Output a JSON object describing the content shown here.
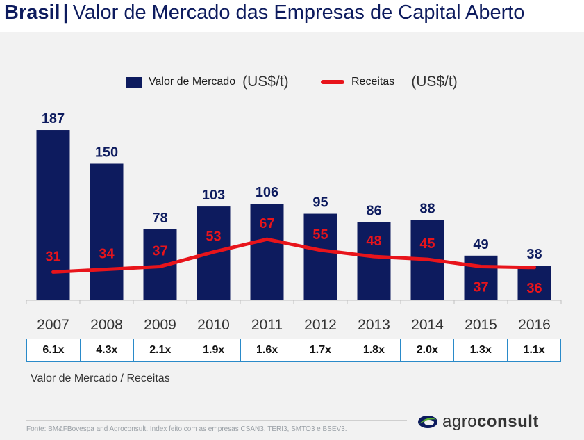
{
  "header": {
    "brand": "Brasil",
    "separator": "|",
    "subtitle": "Valor de Mercado das Empresas de Capital Aberto"
  },
  "legend": {
    "bar_label": "Valor de Mercado",
    "bar_unit": "(US$/t)",
    "line_label": "Receitas",
    "line_unit": "(US$/t)"
  },
  "colors": {
    "bar": "#0d1b5e",
    "line": "#e8141b",
    "bar_label": "#0d1b5e",
    "line_label": "#e8141b"
  },
  "chart_data": {
    "type": "bar",
    "categories": [
      "2007",
      "2008",
      "2009",
      "2010",
      "2011",
      "2012",
      "2013",
      "2014",
      "2015",
      "2016"
    ],
    "series": [
      {
        "name": "Valor de Mercado",
        "type": "bar",
        "values": [
          187,
          150,
          78,
          103,
          106,
          95,
          86,
          88,
          49,
          38
        ]
      },
      {
        "name": "Receitas",
        "type": "line",
        "values": [
          31,
          34,
          37,
          53,
          67,
          55,
          48,
          45,
          37,
          36
        ]
      }
    ],
    "ylim": [
      0,
      200
    ],
    "grid": false,
    "legend_position": "top"
  },
  "ratios": {
    "values": [
      "6.1x",
      "4.3x",
      "2.1x",
      "1.9x",
      "1.6x",
      "1.7x",
      "1.8x",
      "2.0x",
      "1.3x",
      "1.1x"
    ],
    "caption": "Valor de Mercado / Receitas"
  },
  "footer": {
    "source": "Fonte: BM&FBovespa and Agroconsult. Index feito com as empresas CSAN3, TERI3, SMTO3 e BSEV3.",
    "logo_text_light": "agro",
    "logo_text_bold": "consult"
  }
}
